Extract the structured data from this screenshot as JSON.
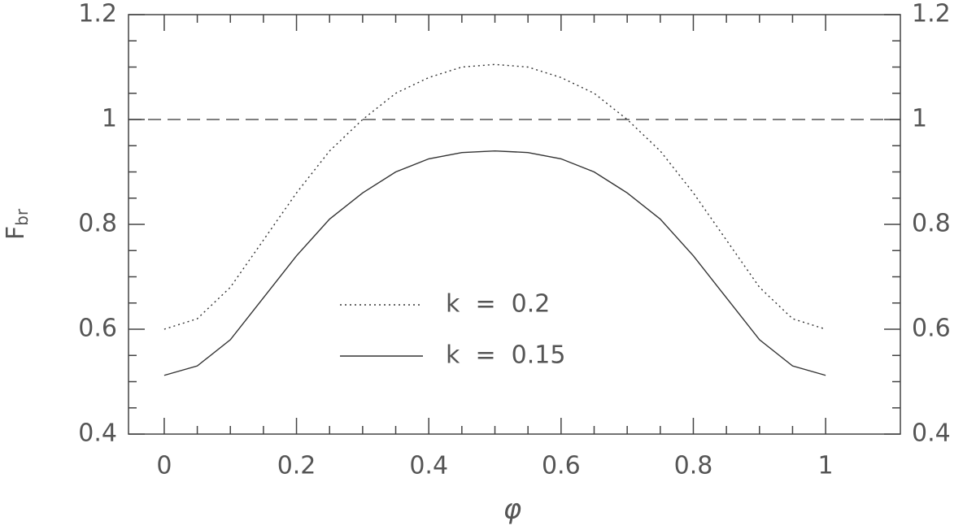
{
  "chart_data": {
    "type": "line",
    "ylabel": {
      "main": "F",
      "sub": "br"
    },
    "xlabel": "φ",
    "x": [
      0,
      0.05,
      0.1,
      0.15,
      0.2,
      0.25,
      0.3,
      0.35,
      0.4,
      0.45,
      0.5,
      0.55,
      0.6,
      0.65,
      0.7,
      0.75,
      0.8,
      0.85,
      0.9,
      0.95,
      1
    ],
    "series": [
      {
        "name": "k  =  0.2",
        "color": "#333333",
        "style": "dotted",
        "values": [
          0.6,
          0.62,
          0.68,
          0.77,
          0.86,
          0.94,
          1.0,
          1.05,
          1.08,
          1.1,
          1.105,
          1.1,
          1.08,
          1.05,
          1.0,
          0.94,
          0.86,
          0.77,
          0.68,
          0.62,
          0.6
        ]
      },
      {
        "name": "k  =  0.15",
        "color": "#333333",
        "style": "solid",
        "values": [
          0.512,
          0.53,
          0.58,
          0.66,
          0.74,
          0.81,
          0.86,
          0.9,
          0.925,
          0.937,
          0.94,
          0.937,
          0.925,
          0.9,
          0.86,
          0.81,
          0.74,
          0.66,
          0.58,
          0.53,
          0.512
        ]
      }
    ],
    "reference_line": {
      "value": 1,
      "style": "dashed",
      "color": "#333333"
    },
    "xlim": [
      -0.054,
      1.113
    ],
    "ylim": [
      0.4,
      1.2
    ],
    "xticks": [
      0,
      0.2,
      0.4,
      0.6,
      0.8,
      1
    ],
    "yticks": [
      0.4,
      0.6,
      0.8,
      1,
      1.2
    ],
    "y2lim": [
      0.4,
      1.2
    ],
    "y2ticks": [
      0.4,
      0.6,
      0.8,
      1,
      1.2
    ],
    "xminorticks": [
      0.05,
      0.1,
      0.15,
      0.25,
      0.3,
      0.35,
      0.45,
      0.5,
      0.55,
      0.65,
      0.7,
      0.75,
      0.85,
      0.9,
      0.95
    ],
    "yminorticks": [
      0.45,
      0.5,
      0.55,
      0.65,
      0.7,
      0.75,
      0.85,
      0.9,
      0.95,
      1.05,
      1.1,
      1.15
    ],
    "legend": "lower-center"
  }
}
